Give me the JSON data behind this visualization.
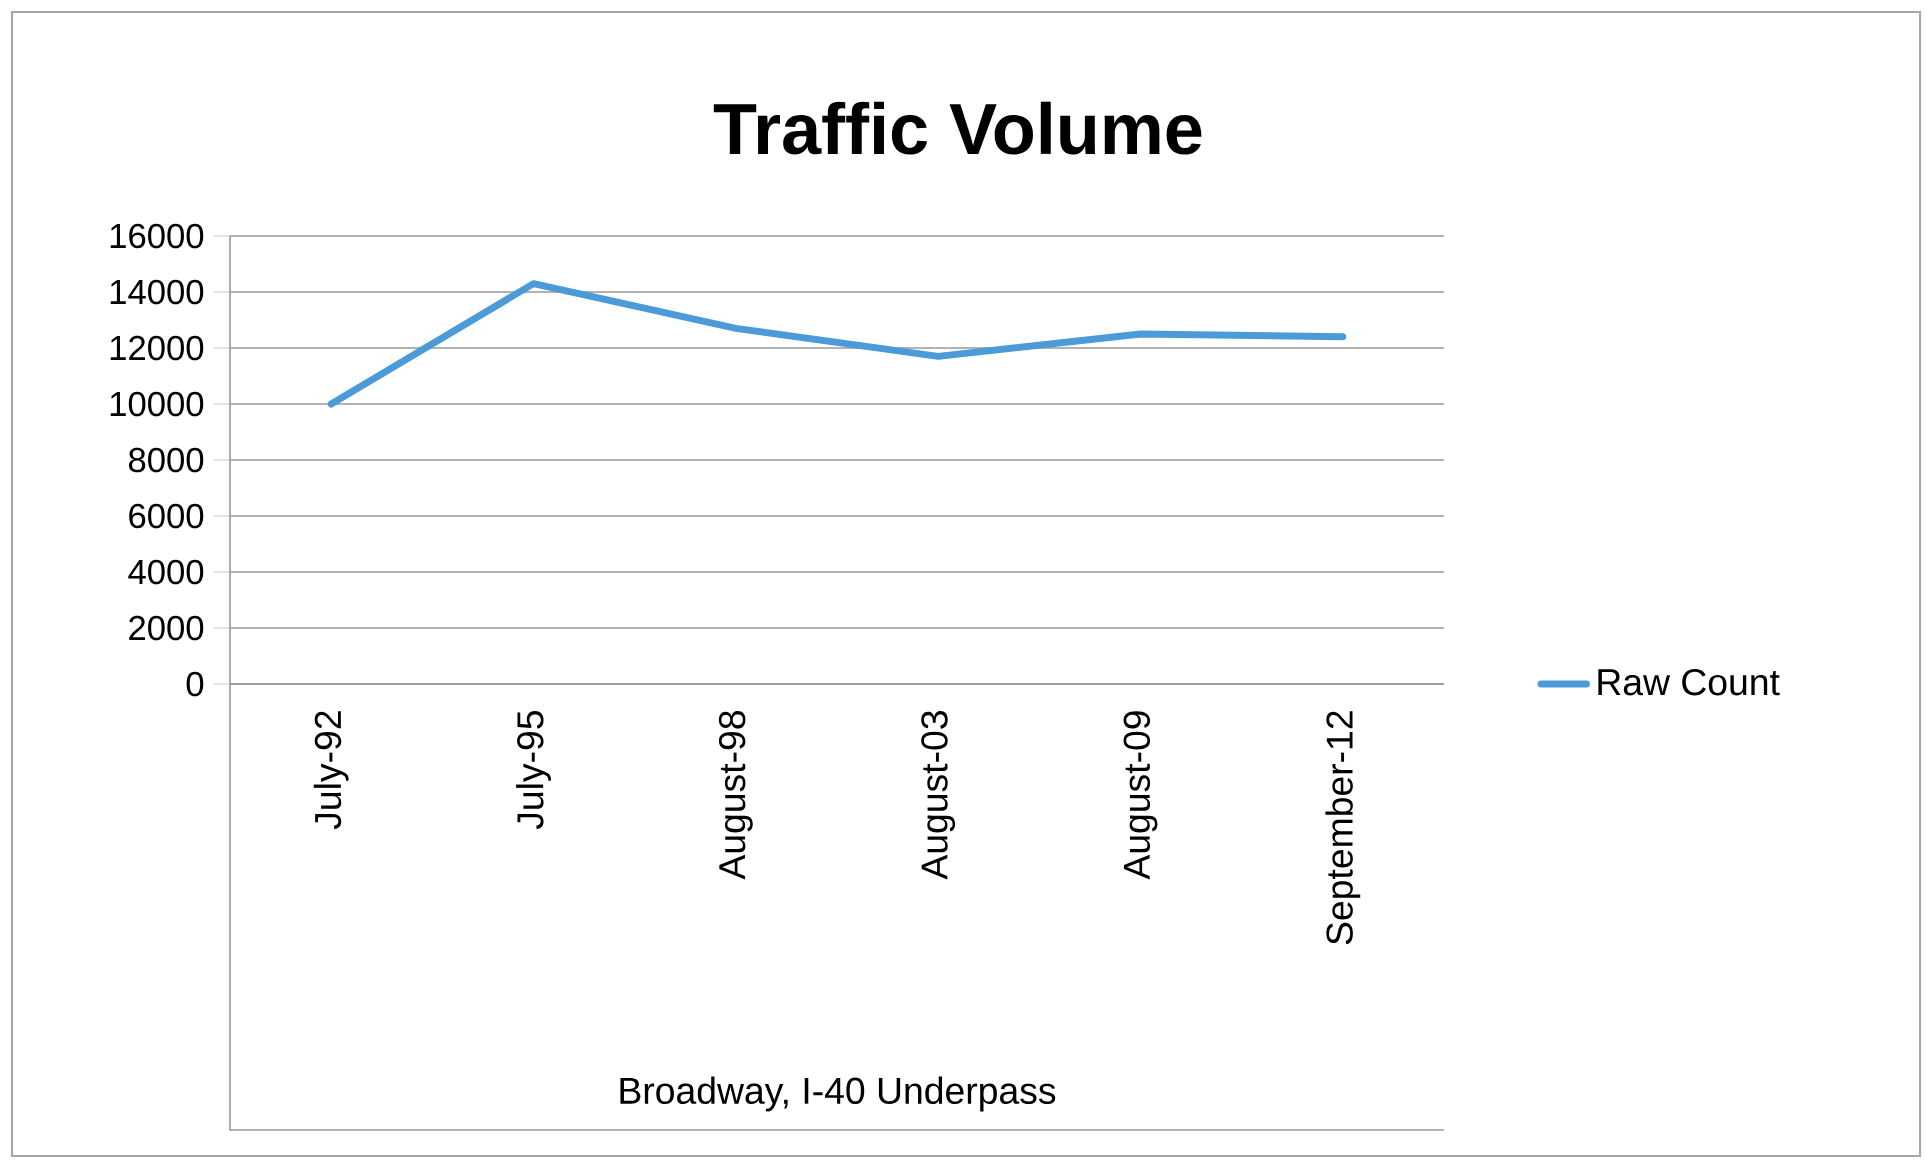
{
  "chart_data": {
    "type": "line",
    "title": "Traffic Volume",
    "xlabel": "Broadway, I-40 Underpass",
    "categories": [
      "July-92",
      "July-95",
      "August-98",
      "August-03",
      "August-09",
      "September-12"
    ],
    "series": [
      {
        "name": "Raw Count",
        "color": "#4a9bd8",
        "values": [
          10000,
          14300,
          12700,
          11700,
          12500,
          12400
        ]
      }
    ],
    "ylim": [
      0,
      16000
    ],
    "yticks": [
      0,
      2000,
      4000,
      6000,
      8000,
      10000,
      12000,
      14000,
      16000
    ],
    "grid": "y",
    "legend": "right",
    "marker": "none",
    "line_style": "solid"
  }
}
